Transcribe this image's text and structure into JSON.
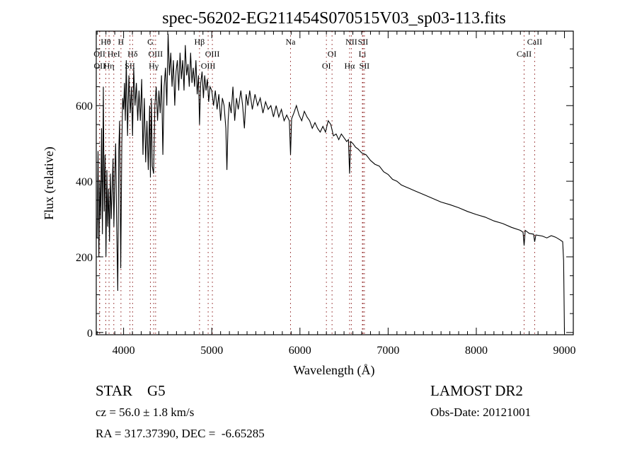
{
  "chart_data": {
    "type": "line",
    "title": "spec-56202-EG211454S070515V03_sp03-113.fits",
    "xlabel": "Wavelength (Å)",
    "ylabel": "Flux (relative)",
    "xlim": [
      3690,
      9100
    ],
    "ylim": [
      -6,
      797
    ],
    "x_ticks": [
      4000,
      5000,
      6000,
      7000,
      8000,
      9000
    ],
    "x_tick_labels": [
      "4000",
      "5000",
      "6000",
      "7000",
      "8000",
      "9000"
    ],
    "y_ticks": [
      0,
      200,
      400,
      600
    ],
    "y_tick_labels": [
      "0",
      "200",
      "400",
      "600"
    ],
    "grid": false,
    "colors": {
      "spectrum": "#000000",
      "line_marker": "#8b1a1a",
      "axes": "#000000"
    },
    "series": [
      {
        "name": "spectrum",
        "points": [
          [
            3700,
            250
          ],
          [
            3710,
            480
          ],
          [
            3720,
            200
          ],
          [
            3730,
            400
          ],
          [
            3740,
            300
          ],
          [
            3750,
            540
          ],
          [
            3760,
            260
          ],
          [
            3770,
            650
          ],
          [
            3780,
            320
          ],
          [
            3790,
            470
          ],
          [
            3800,
            200
          ],
          [
            3810,
            430
          ],
          [
            3820,
            280
          ],
          [
            3830,
            380
          ],
          [
            3840,
            240
          ],
          [
            3850,
            420
          ],
          [
            3860,
            300
          ],
          [
            3880,
            460
          ],
          [
            3890,
            280
          ],
          [
            3900,
            420
          ],
          [
            3910,
            500
          ],
          [
            3920,
            300
          ],
          [
            3934,
            110
          ],
          [
            3945,
            480
          ],
          [
            3955,
            560
          ],
          [
            3968,
            170
          ],
          [
            3980,
            500
          ],
          [
            3990,
            620
          ],
          [
            4000,
            590
          ],
          [
            4010,
            660
          ],
          [
            4020,
            560
          ],
          [
            4030,
            720
          ],
          [
            4045,
            520
          ],
          [
            4060,
            680
          ],
          [
            4075,
            580
          ],
          [
            4090,
            650
          ],
          [
            4102,
            520
          ],
          [
            4115,
            700
          ],
          [
            4130,
            600
          ],
          [
            4145,
            660
          ],
          [
            4160,
            560
          ],
          [
            4175,
            640
          ],
          [
            4190,
            560
          ],
          [
            4205,
            670
          ],
          [
            4220,
            470
          ],
          [
            4235,
            620
          ],
          [
            4250,
            450
          ],
          [
            4265,
            560
          ],
          [
            4280,
            430
          ],
          [
            4295,
            600
          ],
          [
            4304,
            410
          ],
          [
            4315,
            620
          ],
          [
            4325,
            440
          ],
          [
            4340,
            420
          ],
          [
            4355,
            600
          ],
          [
            4370,
            650
          ],
          [
            4385,
            560
          ],
          [
            4400,
            640
          ],
          [
            4415,
            580
          ],
          [
            4430,
            680
          ],
          [
            4445,
            470
          ],
          [
            4460,
            650
          ],
          [
            4475,
            700
          ],
          [
            4490,
            600
          ],
          [
            4505,
            790
          ],
          [
            4520,
            680
          ],
          [
            4535,
            740
          ],
          [
            4550,
            650
          ],
          [
            4565,
            720
          ],
          [
            4580,
            600
          ],
          [
            4595,
            690
          ],
          [
            4610,
            720
          ],
          [
            4625,
            640
          ],
          [
            4640,
            740
          ],
          [
            4655,
            670
          ],
          [
            4670,
            720
          ],
          [
            4685,
            640
          ],
          [
            4700,
            760
          ],
          [
            4715,
            680
          ],
          [
            4730,
            710
          ],
          [
            4745,
            650
          ],
          [
            4760,
            740
          ],
          [
            4775,
            660
          ],
          [
            4790,
            700
          ],
          [
            4805,
            650
          ],
          [
            4820,
            720
          ],
          [
            4835,
            630
          ],
          [
            4850,
            680
          ],
          [
            4861,
            550
          ],
          [
            4875,
            660
          ],
          [
            4890,
            690
          ],
          [
            4905,
            620
          ],
          [
            4920,
            680
          ],
          [
            4935,
            640
          ],
          [
            4950,
            670
          ],
          [
            4965,
            610
          ],
          [
            4980,
            650
          ],
          [
            5000,
            640
          ],
          [
            5020,
            600
          ],
          [
            5040,
            640
          ],
          [
            5060,
            590
          ],
          [
            5080,
            630
          ],
          [
            5100,
            560
          ],
          [
            5120,
            620
          ],
          [
            5140,
            600
          ],
          [
            5160,
            540
          ],
          [
            5172,
            430
          ],
          [
            5185,
            560
          ],
          [
            5200,
            610
          ],
          [
            5220,
            580
          ],
          [
            5240,
            650
          ],
          [
            5260,
            560
          ],
          [
            5280,
            620
          ],
          [
            5300,
            590
          ],
          [
            5330,
            640
          ],
          [
            5350,
            600
          ],
          [
            5370,
            540
          ],
          [
            5390,
            630
          ],
          [
            5410,
            600
          ],
          [
            5430,
            640
          ],
          [
            5460,
            590
          ],
          [
            5490,
            630
          ],
          [
            5520,
            600
          ],
          [
            5550,
            620
          ],
          [
            5580,
            580
          ],
          [
            5610,
            610
          ],
          [
            5640,
            590
          ],
          [
            5670,
            600
          ],
          [
            5700,
            570
          ],
          [
            5730,
            600
          ],
          [
            5760,
            570
          ],
          [
            5790,
            590
          ],
          [
            5820,
            560
          ],
          [
            5850,
            575
          ],
          [
            5880,
            560
          ],
          [
            5893,
            470
          ],
          [
            5905,
            565
          ],
          [
            5930,
            580
          ],
          [
            5960,
            600
          ],
          [
            5990,
            575
          ],
          [
            6020,
            560
          ],
          [
            6050,
            585
          ],
          [
            6080,
            570
          ],
          [
            6110,
            560
          ],
          [
            6140,
            540
          ],
          [
            6170,
            555
          ],
          [
            6200,
            540
          ],
          [
            6230,
            530
          ],
          [
            6260,
            545
          ],
          [
            6290,
            530
          ],
          [
            6320,
            560
          ],
          [
            6350,
            550
          ],
          [
            6380,
            520
          ],
          [
            6410,
            525
          ],
          [
            6440,
            510
          ],
          [
            6470,
            525
          ],
          [
            6500,
            515
          ],
          [
            6530,
            505
          ],
          [
            6550,
            510
          ],
          [
            6563,
            420
          ],
          [
            6575,
            505
          ],
          [
            6600,
            500
          ],
          [
            6630,
            490
          ],
          [
            6660,
            485
          ],
          [
            6700,
            475
          ],
          [
            6750,
            470
          ],
          [
            6800,
            455
          ],
          [
            6850,
            445
          ],
          [
            6900,
            440
          ],
          [
            6950,
            425
          ],
          [
            7000,
            418
          ],
          [
            7050,
            405
          ],
          [
            7100,
            400
          ],
          [
            7150,
            390
          ],
          [
            7200,
            385
          ],
          [
            7250,
            380
          ],
          [
            7300,
            375
          ],
          [
            7400,
            365
          ],
          [
            7500,
            355
          ],
          [
            7600,
            345
          ],
          [
            7700,
            338
          ],
          [
            7800,
            330
          ],
          [
            7900,
            320
          ],
          [
            8000,
            312
          ],
          [
            8100,
            305
          ],
          [
            8200,
            295
          ],
          [
            8300,
            288
          ],
          [
            8400,
            278
          ],
          [
            8500,
            270
          ],
          [
            8530,
            265
          ],
          [
            8542,
            230
          ],
          [
            8555,
            270
          ],
          [
            8600,
            262
          ],
          [
            8650,
            260
          ],
          [
            8662,
            240
          ],
          [
            8675,
            258
          ],
          [
            8750,
            255
          ],
          [
            8800,
            250
          ],
          [
            8850,
            256
          ],
          [
            8900,
            252
          ],
          [
            8950,
            245
          ],
          [
            8980,
            240
          ],
          [
            8990,
            190
          ],
          [
            9000,
            0
          ]
        ]
      }
    ],
    "line_markers": [
      {
        "label": "Hθ",
        "wavelength": 3798,
        "row": 0
      },
      {
        "label": "H",
        "wavelength": 3970,
        "row": 0
      },
      {
        "label": "G",
        "wavelength": 4304,
        "row": 0
      },
      {
        "label": "Hβ",
        "wavelength": 4861,
        "row": 0
      },
      {
        "label": "Na",
        "wavelength": 5893,
        "row": 0
      },
      {
        "label": "NII",
        "wavelength": 6583,
        "row": 0
      },
      {
        "label": "SII",
        "wavelength": 6716,
        "row": 0
      },
      {
        "label": "CaII",
        "wavelength": 8662,
        "row": 0
      },
      {
        "label": "OII",
        "wavelength": 3727,
        "row": 1
      },
      {
        "label": "HeI",
        "wavelength": 3889,
        "row": 1
      },
      {
        "label": "Hδ",
        "wavelength": 4102,
        "row": 1
      },
      {
        "label": "OIII",
        "wavelength": 4363,
        "row": 1
      },
      {
        "label": "OIII",
        "wavelength": 5007,
        "row": 1
      },
      {
        "label": "OI",
        "wavelength": 6364,
        "row": 1
      },
      {
        "label": "Li",
        "wavelength": 6708,
        "row": 1
      },
      {
        "label": "CaII",
        "wavelength": 8542,
        "row": 1
      },
      {
        "label": "OII",
        "wavelength": 3729,
        "row": 2
      },
      {
        "label": "Hη",
        "wavelength": 3835,
        "row": 2
      },
      {
        "label": "SII",
        "wavelength": 4072,
        "row": 2
      },
      {
        "label": "Hγ",
        "wavelength": 4341,
        "row": 2
      },
      {
        "label": "OIII",
        "wavelength": 4959,
        "row": 2
      },
      {
        "label": "OI",
        "wavelength": 6300,
        "row": 2
      },
      {
        "label": "Hα",
        "wavelength": 6563,
        "row": 2
      },
      {
        "label": "SII",
        "wavelength": 6731,
        "row": 2
      }
    ]
  },
  "info": {
    "class_label": "STAR",
    "subclass": "G5",
    "redshift": "cz = 56.0 ± 1.8 km/s",
    "coords": "RA = 317.37390, DEC =  -6.65285",
    "survey": "LAMOST DR2",
    "obs_date": "Obs-Date: 20121001"
  }
}
